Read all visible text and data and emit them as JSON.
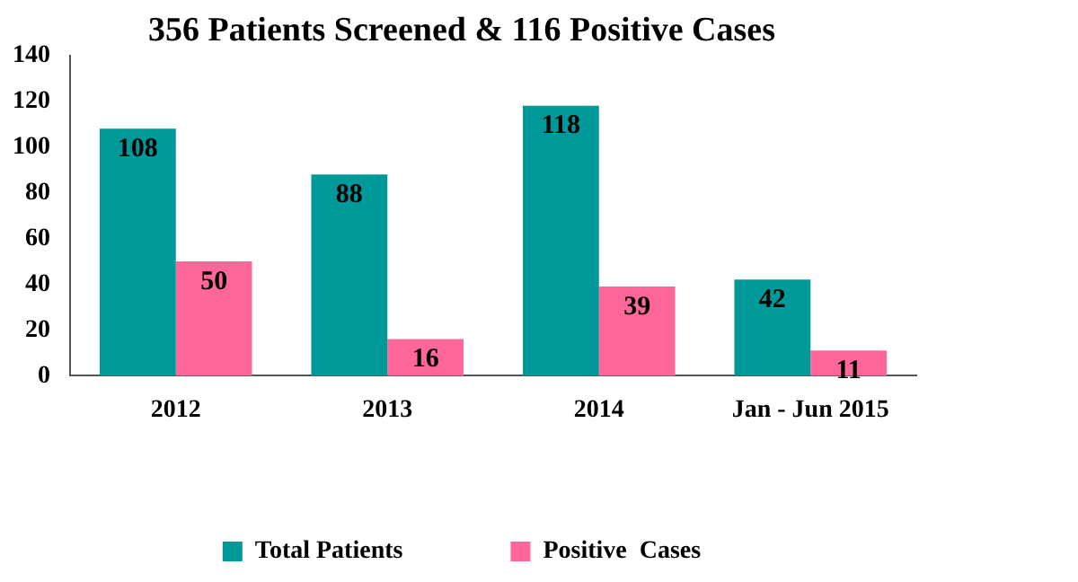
{
  "chart_data": {
    "type": "bar",
    "title": "356 Patients Screened & 116 Positive Cases",
    "categories": [
      "2012",
      "2013",
      "2014",
      "Jan - Jun 2015"
    ],
    "series": [
      {
        "name": "Total Patients",
        "color": "#009999",
        "values": [
          108,
          88,
          118,
          42
        ]
      },
      {
        "name": "Positive  Cases",
        "color": "#ff6699",
        "values": [
          50,
          16,
          39,
          11
        ]
      }
    ],
    "ylim": [
      0,
      140
    ],
    "yticks": [
      0,
      20,
      40,
      60,
      80,
      100,
      120,
      140
    ],
    "grid": false,
    "legend": "bottom",
    "data_labels": true
  }
}
